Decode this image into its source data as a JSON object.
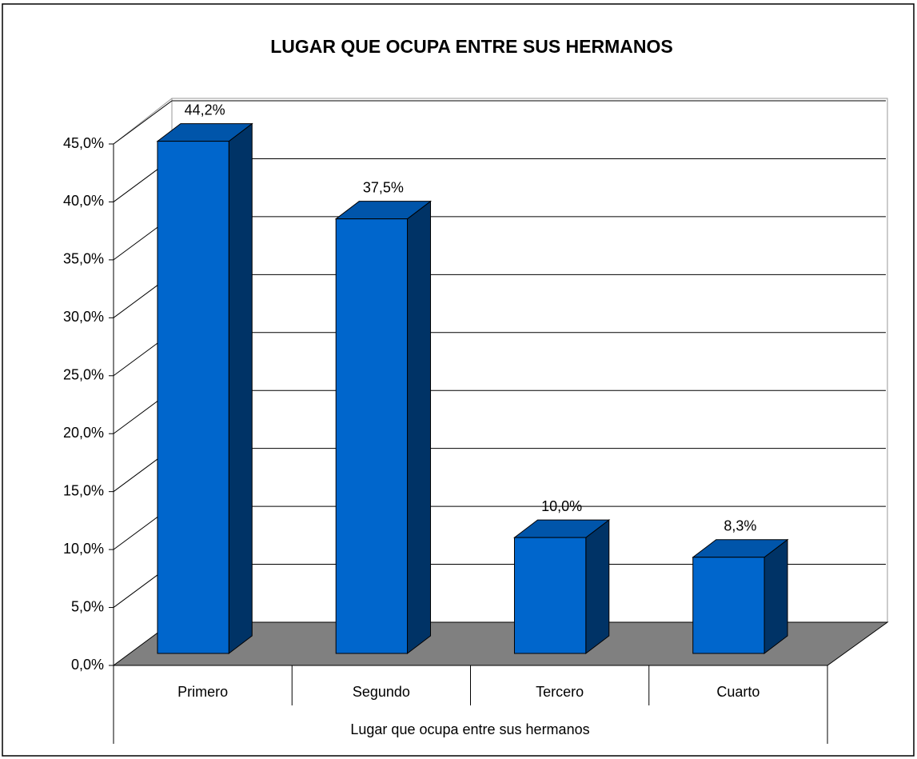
{
  "chart_data": {
    "type": "bar3d",
    "title": "LUGAR QUE OCUPA ENTRE SUS HERMANOS",
    "x_label": "Lugar que ocupa entre sus hermanos",
    "categories": [
      "Primero",
      "Segundo",
      "Tercero",
      "Cuarto"
    ],
    "values": [
      44.2,
      37.5,
      10.0,
      8.3
    ],
    "value_labels": [
      "44,2%",
      "37,5%",
      "10,0%",
      "8,3%"
    ],
    "color": "#0066cc",
    "ylim": [
      0,
      45
    ],
    "yticks": [
      {
        "value": 0,
        "label": "0,0%"
      },
      {
        "value": 5,
        "label": "5,0%"
      },
      {
        "value": 10,
        "label": "10,0%"
      },
      {
        "value": 15,
        "label": "15,0%"
      },
      {
        "value": 20,
        "label": "20,0%"
      },
      {
        "value": 25,
        "label": "25,0%"
      },
      {
        "value": 30,
        "label": "30,0%"
      },
      {
        "value": 35,
        "label": "35,0%"
      },
      {
        "value": 40,
        "label": "40,0%"
      },
      {
        "value": 45,
        "label": "45,0%"
      }
    ],
    "grid": true
  }
}
